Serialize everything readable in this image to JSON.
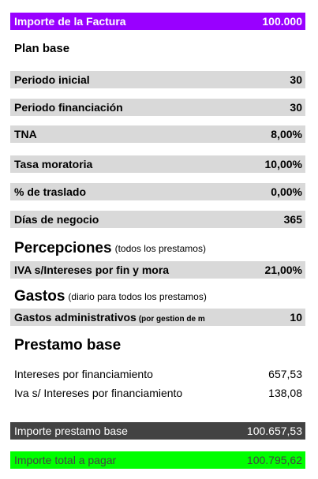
{
  "invoice": {
    "label": "Importe de la Factura",
    "value": "100.000"
  },
  "plan_base": {
    "title": "Plan base"
  },
  "params": [
    {
      "label": "Periodo inicial",
      "value": "30"
    },
    {
      "label": "Periodo financiación",
      "value": "30"
    },
    {
      "label": "TNA",
      "value": "8,00%"
    },
    {
      "label": "Tasa moratoria",
      "value": "10,00%"
    },
    {
      "label": "% de traslado",
      "value": "0,00%"
    },
    {
      "label": "Días de negocio",
      "value": "365"
    }
  ],
  "percepciones": {
    "title": "Percepciones",
    "note": "(todos los prestamos)",
    "row": {
      "label": "IVA s/Intereses por fin y mora",
      "value": "21,00%"
    }
  },
  "gastos": {
    "title": "Gastos",
    "note": "(diario para todos los prestamos)",
    "row": {
      "label": "Gastos administrativos",
      "note": "(por gestion de m",
      "value": "10"
    }
  },
  "prestamo_base": {
    "title": "Prestamo base",
    "rows": [
      {
        "label": "Intereses por financiamiento",
        "value": "657,53"
      },
      {
        "label": "Iva s/ Intereses por financiamiento",
        "value": "138,08"
      }
    ]
  },
  "totals": {
    "importe_prestamo": {
      "label": "Importe prestamo base",
      "value": "100.657,53"
    },
    "importe_total": {
      "label": "Importe total a pagar",
      "value": "100.795,62"
    }
  },
  "colors": {
    "header": "#9900ff",
    "row_bg": "#d9d9d9",
    "total_dark": "#434343",
    "total_green": "#00ff00"
  }
}
